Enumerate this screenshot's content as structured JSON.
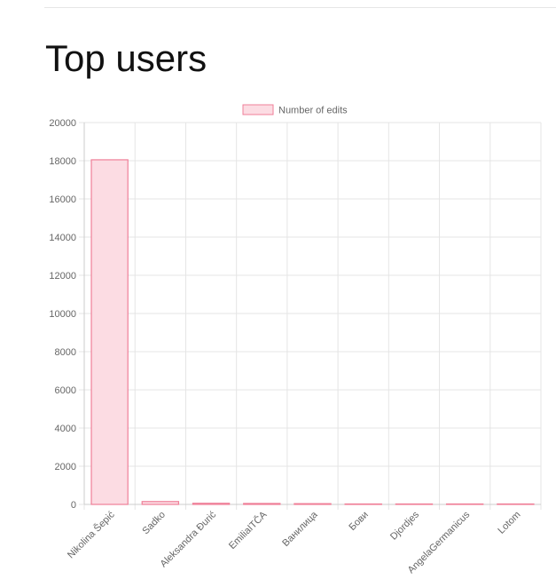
{
  "page": {
    "title": "Top users"
  },
  "chart_data": {
    "type": "bar",
    "categories": [
      "Nikolina Šepić",
      "Sadko",
      "Aleksandra Đurić",
      "EmiliaITČA",
      "Ванилица",
      "Бови",
      "Djordjes",
      "AngelaGermanicus",
      "Lotom"
    ],
    "series": [
      {
        "name": "Number of edits",
        "values": [
          18050,
          150,
          60,
          50,
          40,
          15,
          8,
          5,
          3
        ]
      }
    ],
    "ylim": [
      0,
      20000
    ],
    "yticks": [
      0,
      2000,
      4000,
      6000,
      8000,
      10000,
      12000,
      14000,
      16000,
      18000,
      20000
    ],
    "xlabel": "",
    "ylabel": "",
    "grid": true,
    "legend_position": "top",
    "colors": {
      "bar_fill": "#fcdce3",
      "bar_border": "#ef7f98",
      "grid": "#e5e5e5",
      "axis_text": "#666666"
    }
  }
}
